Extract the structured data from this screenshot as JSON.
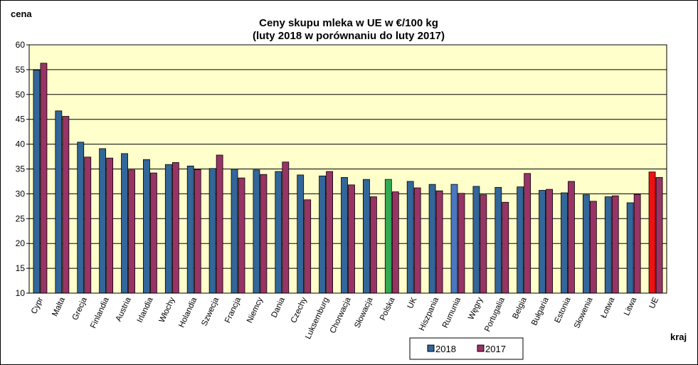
{
  "chart_data": {
    "type": "bar",
    "title": "Ceny skupu mleka  w UE w €/100 kg",
    "subtitle": "(luty 2018 w porównaniu do luty 2017)",
    "ylabel": "cena",
    "xlabel": "kraj",
    "ylim": [
      10,
      60
    ],
    "yticks": [
      10,
      15,
      20,
      25,
      30,
      35,
      40,
      45,
      50,
      55,
      60
    ],
    "grid": true,
    "legend_position": "bottom",
    "plot_background": "#ffffcc",
    "categories": [
      "Cypr",
      "Malta",
      "Grecja",
      "Finlandia",
      "Austria",
      "Irlandia",
      "Włochy",
      "Holandia",
      "Szwecja",
      "Francja",
      "Niemcy",
      "Dania",
      "Czechy",
      "Luksemburg",
      "Chorwacja",
      "Słowacja",
      "Polska",
      "UK",
      "Hiszpania",
      "Rumunia",
      "Węgry",
      "Portugalia",
      "Belgia",
      "Bułgaria",
      "Estonia",
      "Słowenia",
      "Łotwa",
      "Litwa",
      "UE"
    ],
    "series": [
      {
        "name": "2018",
        "color": "#336699",
        "values": [
          54.9,
          46.7,
          40.4,
          39.1,
          38.1,
          36.9,
          35.9,
          35.6,
          35.1,
          35.0,
          34.8,
          34.5,
          33.8,
          33.6,
          33.3,
          32.9,
          32.9,
          32.5,
          31.9,
          31.9,
          31.5,
          31.3,
          31.4,
          30.7,
          30.2,
          29.8,
          29.4,
          28.2,
          34.4
        ]
      },
      {
        "name": "2017",
        "color": "#993366",
        "values": [
          56.3,
          45.6,
          37.4,
          37.2,
          34.8,
          34.2,
          36.3,
          34.9,
          37.8,
          33.2,
          33.9,
          36.4,
          28.8,
          34.5,
          31.8,
          29.4,
          30.4,
          31.2,
          30.6,
          30.1,
          29.8,
          28.3,
          34.1,
          30.9,
          32.5,
          28.5,
          29.6,
          29.9,
          33.3
        ]
      }
    ],
    "highlight": {
      "Polska": "#33aa55",
      "Rumunia": "#4b77be",
      "UE": "#ee1111"
    }
  }
}
